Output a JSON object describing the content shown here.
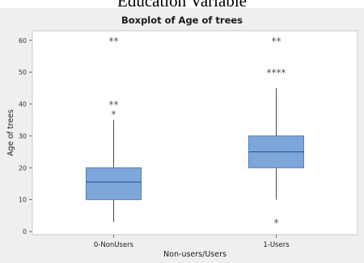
{
  "page": {
    "heading": "Education Variable"
  },
  "chart_data": {
    "type": "boxplot",
    "title": "Boxplot of Age of trees",
    "xlabel": "Non-users/Users",
    "ylabel": "Age of trees",
    "ylim": [
      -1,
      63
    ],
    "yticks": [
      0,
      10,
      20,
      30,
      40,
      50,
      60
    ],
    "grid": false,
    "categories": [
      "0-NonUsers",
      "1-Users"
    ],
    "series": [
      {
        "category": "0-NonUsers",
        "min": 3,
        "q1": 10,
        "median": 15.5,
        "q3": 20,
        "max": 35,
        "outliers": [
          {
            "value": 60,
            "label": "**"
          },
          {
            "value": 40,
            "label": "**"
          },
          {
            "value": 37,
            "label": "*"
          }
        ]
      },
      {
        "category": "1-Users",
        "min": 10,
        "q1": 20,
        "median": 25,
        "q3": 30,
        "max": 45,
        "outliers": [
          {
            "value": 60,
            "label": "**"
          },
          {
            "value": 50,
            "label": "****"
          },
          {
            "value": 3,
            "label": "*"
          }
        ]
      }
    ],
    "colors": {
      "box_fill": "#7da7d9",
      "box_stroke": "#4f7db8",
      "median": "#2f5f9e",
      "whisker": "#4a4a4a",
      "plot_bg": "#ffffff",
      "frame_bg": "#efefef"
    }
  }
}
